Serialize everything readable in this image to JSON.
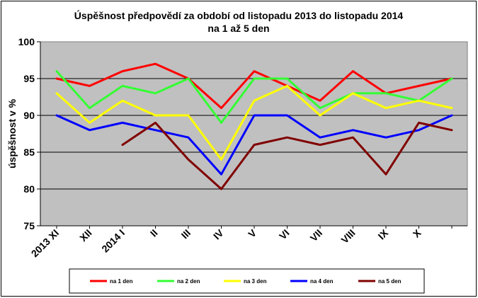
{
  "chart_data": {
    "type": "line",
    "title_lines": [
      "Úspěšnost předpovědí za období od listopadu 2013 do listopadu 2014",
      "na 1 až 5 den"
    ],
    "ylabel": "úspěšnost v %",
    "xlabel": "",
    "categories": [
      "2013 XI",
      "XII",
      "2014 I",
      "II",
      "III",
      "IV",
      "V",
      "VI",
      "VII",
      "VIII",
      "IX",
      "X",
      ""
    ],
    "ylim": [
      75,
      100
    ],
    "yticks": [
      75,
      80,
      85,
      90,
      95,
      100
    ],
    "grid": true,
    "plot_background": "#c0c0c0",
    "legend_position": "bottom",
    "series": [
      {
        "name": "na 1 den",
        "color": "#ff0000",
        "values": [
          95,
          94,
          96,
          97,
          95,
          91,
          96,
          94,
          92,
          96,
          93,
          94,
          95
        ]
      },
      {
        "name": "na 2 den",
        "color": "#33ff33",
        "values": [
          96,
          91,
          94,
          93,
          95,
          89,
          95,
          95,
          91,
          93,
          93,
          92,
          95
        ]
      },
      {
        "name": "na 3 den",
        "color": "#ffff00",
        "values": [
          93,
          89,
          92,
          90,
          90,
          84,
          92,
          94,
          90,
          93,
          91,
          92,
          91
        ]
      },
      {
        "name": "na 4 den",
        "color": "#0000ff",
        "values": [
          90,
          88,
          89,
          88,
          87,
          82,
          90,
          90,
          87,
          88,
          87,
          88,
          90
        ]
      },
      {
        "name": "na 5 den",
        "color": "#800000",
        "values": [
          null,
          null,
          86,
          89,
          84,
          80,
          86,
          87,
          86,
          87,
          82,
          89,
          88
        ]
      }
    ]
  }
}
